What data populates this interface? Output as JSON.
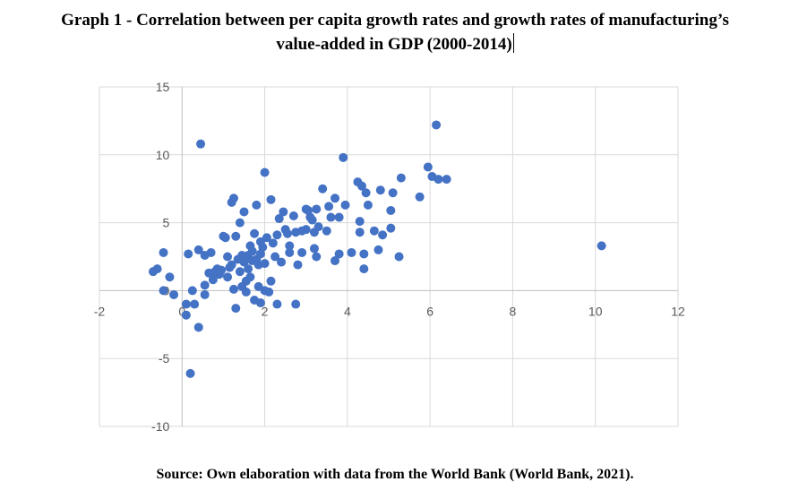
{
  "title_line1": "Graph 1 - Correlation between per capita growth rates and growth rates of manufacturing’s",
  "title_line2": "value-added in GDP (2000-2014)",
  "source": "Source: Own elaboration with data from the World Bank (World Bank, 2021).",
  "colors": {
    "marker": "#4472C4",
    "grid": "#d9d9d9",
    "axis": "#bfbfbf",
    "tick_text": "#595959"
  },
  "chart_data": {
    "type": "scatter",
    "title": "",
    "xlabel": "",
    "ylabel": "",
    "xlim": [
      -2,
      12
    ],
    "ylim": [
      -10,
      15
    ],
    "x_ticks": [
      -2,
      0,
      2,
      4,
      6,
      8,
      10,
      12
    ],
    "y_ticks": [
      -10,
      -5,
      0,
      5,
      10,
      15
    ],
    "grid": {
      "horizontal": true,
      "vertical": true
    },
    "legend": "none",
    "series": [
      {
        "points": [
          [
            -0.7,
            1.4
          ],
          [
            -0.6,
            1.6
          ],
          [
            -0.45,
            2.8
          ],
          [
            -0.45,
            0.0
          ],
          [
            -0.3,
            1.0
          ],
          [
            -0.2,
            -0.3
          ],
          [
            0.1,
            -1.0
          ],
          [
            0.1,
            -1.8
          ],
          [
            0.15,
            2.7
          ],
          [
            0.2,
            -6.1
          ],
          [
            0.25,
            0.0
          ],
          [
            0.3,
            -1.0
          ],
          [
            0.4,
            3.0
          ],
          [
            0.4,
            -2.7
          ],
          [
            0.45,
            10.8
          ],
          [
            0.55,
            2.6
          ],
          [
            0.55,
            0.4
          ],
          [
            0.55,
            -0.3
          ],
          [
            0.65,
            1.3
          ],
          [
            0.7,
            2.8
          ],
          [
            0.75,
            0.8
          ],
          [
            0.8,
            1.4
          ],
          [
            0.85,
            1.6
          ],
          [
            0.9,
            1.2
          ],
          [
            0.95,
            1.5
          ],
          [
            1.0,
            4.0
          ],
          [
            1.05,
            3.9
          ],
          [
            1.1,
            2.5
          ],
          [
            1.1,
            1.0
          ],
          [
            1.15,
            1.7
          ],
          [
            1.2,
            6.5
          ],
          [
            1.2,
            1.9
          ],
          [
            1.25,
            6.8
          ],
          [
            1.25,
            0.1
          ],
          [
            1.3,
            4.0
          ],
          [
            1.3,
            -1.3
          ],
          [
            1.35,
            2.3
          ],
          [
            1.4,
            1.4
          ],
          [
            1.4,
            5.0
          ],
          [
            1.45,
            2.6
          ],
          [
            1.45,
            0.3
          ],
          [
            1.5,
            5.8
          ],
          [
            1.5,
            2.1
          ],
          [
            1.55,
            0.7
          ],
          [
            1.55,
            -0.1
          ],
          [
            1.6,
            2.6
          ],
          [
            1.6,
            1.6
          ],
          [
            1.65,
            3.3
          ],
          [
            1.65,
            1.0
          ],
          [
            1.7,
            2.9
          ],
          [
            1.7,
            2.2
          ],
          [
            1.75,
            4.2
          ],
          [
            1.75,
            -0.7
          ],
          [
            1.8,
            6.3
          ],
          [
            1.8,
            2.3
          ],
          [
            1.85,
            1.9
          ],
          [
            1.85,
            0.3
          ],
          [
            1.9,
            3.6
          ],
          [
            1.9,
            2.7
          ],
          [
            1.9,
            -0.9
          ],
          [
            1.95,
            3.2
          ],
          [
            2.0,
            8.7
          ],
          [
            2.0,
            2.0
          ],
          [
            2.0,
            0.0
          ],
          [
            2.05,
            3.9
          ],
          [
            2.1,
            -0.1
          ],
          [
            2.15,
            6.7
          ],
          [
            2.15,
            0.7
          ],
          [
            2.2,
            3.5
          ],
          [
            2.25,
            2.5
          ],
          [
            2.3,
            4.1
          ],
          [
            2.3,
            -1.0
          ],
          [
            2.35,
            5.3
          ],
          [
            2.4,
            2.1
          ],
          [
            2.45,
            5.8
          ],
          [
            2.5,
            4.5
          ],
          [
            2.55,
            4.2
          ],
          [
            2.6,
            3.3
          ],
          [
            2.6,
            2.8
          ],
          [
            2.7,
            5.5
          ],
          [
            2.75,
            4.3
          ],
          [
            2.75,
            -1.0
          ],
          [
            2.8,
            1.9
          ],
          [
            2.9,
            4.4
          ],
          [
            2.9,
            2.8
          ],
          [
            3.0,
            6.0
          ],
          [
            3.0,
            4.5
          ],
          [
            3.05,
            5.9
          ],
          [
            3.1,
            5.4
          ],
          [
            3.15,
            5.2
          ],
          [
            3.2,
            3.1
          ],
          [
            3.2,
            4.3
          ],
          [
            3.25,
            6.0
          ],
          [
            3.25,
            2.5
          ],
          [
            3.3,
            4.7
          ],
          [
            3.4,
            7.5
          ],
          [
            3.5,
            4.4
          ],
          [
            3.55,
            6.2
          ],
          [
            3.6,
            5.4
          ],
          [
            3.7,
            6.8
          ],
          [
            3.7,
            2.2
          ],
          [
            3.8,
            5.4
          ],
          [
            3.8,
            2.7
          ],
          [
            3.9,
            9.8
          ],
          [
            3.95,
            6.3
          ],
          [
            4.1,
            2.8
          ],
          [
            4.25,
            8.0
          ],
          [
            4.3,
            5.1
          ],
          [
            4.3,
            4.3
          ],
          [
            4.35,
            7.7
          ],
          [
            4.4,
            2.7
          ],
          [
            4.4,
            1.6
          ],
          [
            4.45,
            7.2
          ],
          [
            4.5,
            6.3
          ],
          [
            4.65,
            4.4
          ],
          [
            4.75,
            3.0
          ],
          [
            4.8,
            7.4
          ],
          [
            4.85,
            4.1
          ],
          [
            5.05,
            4.6
          ],
          [
            5.05,
            5.9
          ],
          [
            5.1,
            7.2
          ],
          [
            5.25,
            2.5
          ],
          [
            5.3,
            8.3
          ],
          [
            5.75,
            6.9
          ],
          [
            5.95,
            9.1
          ],
          [
            6.05,
            8.4
          ],
          [
            6.15,
            12.2
          ],
          [
            6.2,
            8.2
          ],
          [
            6.4,
            8.2
          ],
          [
            10.15,
            3.3
          ]
        ]
      }
    ]
  }
}
